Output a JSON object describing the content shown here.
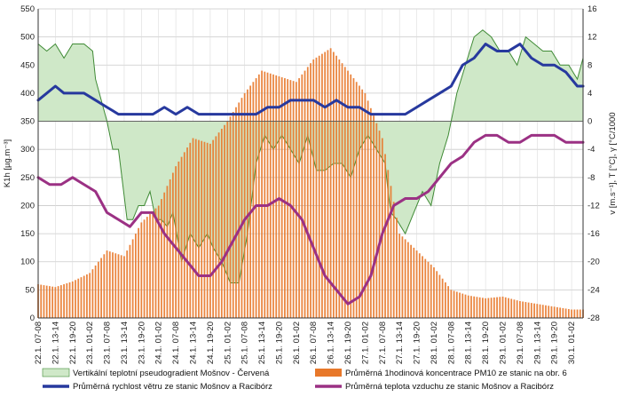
{
  "chart_data": {
    "type": "bar",
    "y_left": {
      "label": "K1h [µg.m⁻³]",
      "ylim": [
        0,
        550
      ],
      "ticks": [
        0,
        50,
        100,
        150,
        200,
        250,
        300,
        350,
        400,
        450,
        500,
        550
      ]
    },
    "y_right": {
      "label": "v [m.s⁻¹], T [°C], γ [°C/1000",
      "ylim": [
        -28,
        16
      ],
      "ticks": [
        -28,
        -24,
        -20,
        -16,
        -12,
        -8,
        -4,
        0,
        4,
        8,
        12,
        16
      ]
    },
    "x_tick_labels": [
      "22.1. 07-08",
      "22.1. 13-14",
      "22.1. 19-20",
      "23.1. 01-02",
      "23.1. 07-08",
      "23.1. 13-14",
      "23.1. 19-20",
      "24.1. 01-02",
      "24.1. 07-08",
      "24.1. 13-14",
      "24.1. 19-20",
      "25.1. 01-02",
      "25.1. 07-08",
      "25.1. 13-14",
      "25.1. 19-20",
      "26.1. 01-02",
      "26.1. 07-08",
      "26.1. 13-14",
      "26.1. 19-20",
      "27.1. 01-02",
      "27.1. 07-08",
      "27.1. 13-14",
      "27.1. 19-20",
      "28.1. 01-02",
      "28.1. 07-08",
      "28.1. 13-14",
      "28.1. 19-20",
      "29.1. 01-02",
      "29.1. 07-08",
      "29.1. 13-14",
      "29.1. 19-20",
      "30.1. 01-02"
    ],
    "x_tick_hours": [
      0,
      6,
      12,
      18,
      24,
      30,
      36,
      42,
      48,
      54,
      60,
      66,
      72,
      78,
      84,
      90,
      96,
      102,
      108,
      114,
      120,
      126,
      132,
      138,
      144,
      150,
      156,
      162,
      168,
      174,
      180,
      186
    ],
    "series": [
      {
        "name": "Vertikální teplotní pseudogradient Mošnov - Červená",
        "kind": "area",
        "axis": "right",
        "color": "#cfe8c8",
        "edge": "#3f8a35",
        "x": [
          0,
          3,
          6,
          9,
          12,
          16,
          19,
          20,
          24,
          26,
          28,
          31,
          33,
          35,
          37,
          39,
          41,
          43,
          45,
          47,
          50,
          53,
          56,
          59,
          61,
          64,
          67,
          70,
          73,
          76,
          79,
          82,
          85,
          88,
          91,
          94,
          97,
          100,
          103,
          106,
          109,
          112,
          115,
          118,
          121,
          122,
          123,
          125,
          128,
          131,
          134,
          137,
          140,
          143,
          146,
          149,
          152,
          155,
          158,
          161,
          164,
          167,
          170,
          173,
          176,
          179,
          182,
          185,
          188,
          190
        ],
        "y": [
          11,
          10,
          11,
          9,
          11,
          11,
          10,
          6,
          0,
          -4,
          -4,
          -14,
          -14,
          -12,
          -12,
          -10,
          -14,
          -14,
          -15,
          -13,
          -20,
          -16,
          -18,
          -16,
          -18,
          -20,
          -23,
          -23,
          -16,
          -6,
          -2,
          -4,
          -2,
          -4,
          -6,
          -2,
          -7,
          -7,
          -6,
          -6,
          -8,
          -4,
          -2,
          -4,
          -6,
          -10,
          -13,
          -14,
          -16,
          -13,
          -10,
          -12,
          -6,
          -2,
          4,
          8,
          12,
          13,
          12,
          10,
          10,
          8,
          12,
          11,
          10,
          10,
          8,
          8,
          6,
          9
        ]
      },
      {
        "name": "Průměrná 1hodinová koncentrace PM10 ze stanic na obr. 6",
        "kind": "bar",
        "axis": "left",
        "color": "#e8782a",
        "x": [
          0,
          6,
          12,
          18,
          24,
          30,
          36,
          42,
          48,
          54,
          60,
          66,
          72,
          78,
          84,
          90,
          96,
          102,
          108,
          114,
          120,
          126,
          132,
          138,
          144,
          150,
          156,
          162,
          168,
          174,
          180,
          186,
          190
        ],
        "y": [
          60,
          55,
          65,
          80,
          120,
          110,
          170,
          200,
          270,
          320,
          310,
          350,
          400,
          440,
          430,
          420,
          460,
          480,
          440,
          400,
          320,
          150,
          120,
          90,
          50,
          40,
          35,
          38,
          30,
          25,
          20,
          15,
          15
        ]
      },
      {
        "name": "Průměrná rychlost větru ze stanic Mošnov a Racibórz",
        "kind": "line",
        "axis": "right",
        "color": "#27399e",
        "x": [
          0,
          3,
          6,
          9,
          12,
          16,
          20,
          24,
          28,
          32,
          36,
          40,
          44,
          48,
          52,
          56,
          60,
          64,
          68,
          72,
          76,
          80,
          84,
          88,
          92,
          96,
          100,
          104,
          108,
          112,
          116,
          120,
          124,
          128,
          132,
          136,
          140,
          144,
          148,
          152,
          156,
          160,
          164,
          168,
          172,
          176,
          180,
          184,
          188,
          190
        ],
        "y": [
          3,
          4,
          5,
          4,
          4,
          4,
          3,
          2,
          1,
          1,
          1,
          1,
          2,
          1,
          2,
          1,
          1,
          1,
          1,
          1,
          1,
          2,
          2,
          3,
          3,
          3,
          2,
          3,
          2,
          2,
          1,
          1,
          1,
          1,
          2,
          3,
          4,
          5,
          8,
          9,
          11,
          10,
          10,
          11,
          9,
          8,
          8,
          7,
          5,
          5
        ]
      },
      {
        "name": "Průměrná teplota vzduchu ze stanic Mošnov a Racibórz",
        "kind": "line",
        "axis": "right",
        "color": "#9b3184",
        "x": [
          0,
          4,
          8,
          12,
          16,
          20,
          24,
          28,
          32,
          36,
          40,
          44,
          48,
          52,
          56,
          60,
          64,
          68,
          72,
          76,
          80,
          84,
          88,
          92,
          96,
          100,
          104,
          108,
          112,
          116,
          120,
          124,
          128,
          132,
          136,
          140,
          144,
          148,
          152,
          156,
          160,
          164,
          168,
          172,
          176,
          180,
          184,
          188,
          190
        ],
        "y": [
          -8,
          -9,
          -9,
          -8,
          -9,
          -10,
          -13,
          -14,
          -15,
          -13,
          -13,
          -16,
          -18,
          -20,
          -22,
          -22,
          -20,
          -17,
          -14,
          -12,
          -12,
          -11,
          -12,
          -14,
          -18,
          -22,
          -24,
          -26,
          -25,
          -22,
          -16,
          -12,
          -11,
          -11,
          -10,
          -8,
          -6,
          -5,
          -3,
          -2,
          -2,
          -3,
          -3,
          -2,
          -2,
          -2,
          -3,
          -3,
          -3
        ]
      }
    ],
    "legend": {
      "placement": "bottom",
      "items": [
        {
          "label": "Vertikální teplotní pseudogradient Mošnov - Červená",
          "color": "#cfe8c8",
          "kind": "area"
        },
        {
          "label": "Průměrná 1hodinová koncentrace PM10 ze stanic na obr. 6",
          "color": "#e8782a",
          "kind": "bar"
        },
        {
          "label": "Průměrná rychlost větru ze stanic Mošnov a Racibórz",
          "color": "#27399e",
          "kind": "line"
        },
        {
          "label": "Průměrná teplota vzduchu ze stanic Mošnov a Racibórz",
          "color": "#9b3184",
          "kind": "line"
        }
      ]
    },
    "grid": true
  }
}
